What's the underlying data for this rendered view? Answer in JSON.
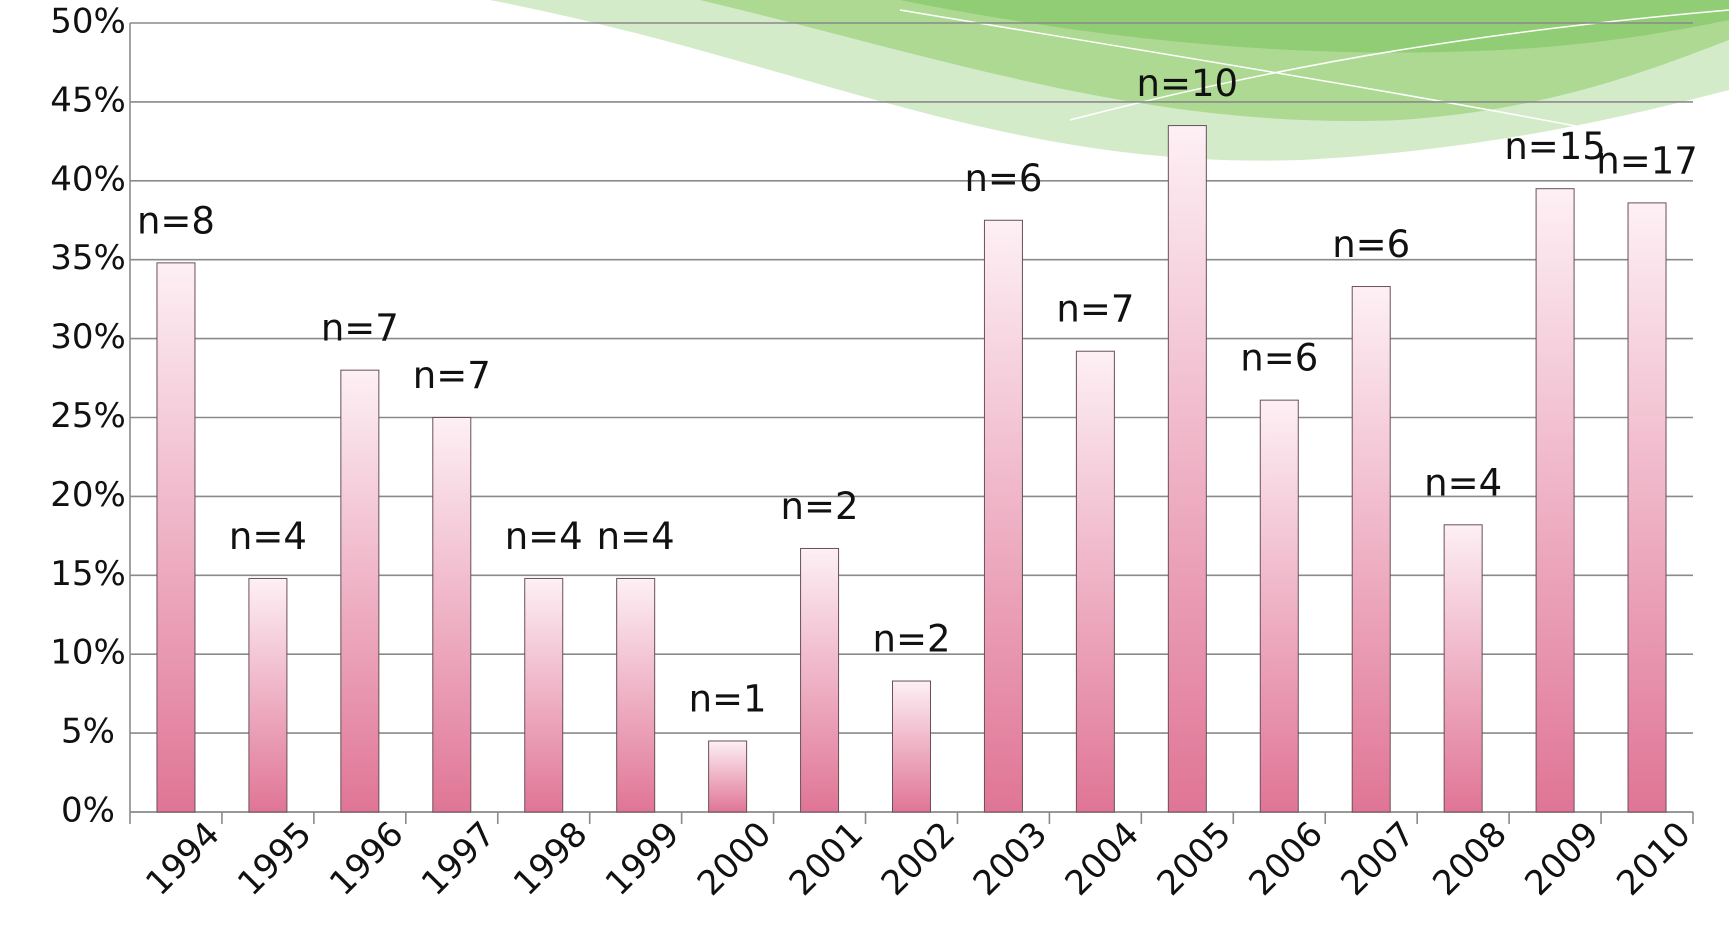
{
  "chart_data": {
    "type": "bar",
    "categories": [
      "1994",
      "1995",
      "1996",
      "1997",
      "1998",
      "1999",
      "2000",
      "2001",
      "2002",
      "2003",
      "2004",
      "2005",
      "2006",
      "2007",
      "2008",
      "2009",
      "2010"
    ],
    "values": [
      34.8,
      14.8,
      28,
      25,
      14.8,
      14.8,
      4.5,
      16.7,
      8.3,
      37.5,
      29.2,
      43.5,
      26.1,
      33.3,
      18.2,
      39.5,
      38.6
    ],
    "annotations": [
      "n=8",
      "n=4",
      "n=7",
      "n=7",
      "n=4",
      "n=4",
      "n=1",
      "n=2",
      "n=2",
      "n=6",
      "n=7",
      "n=10",
      "n=6",
      "n=6",
      "n=4",
      "n=15",
      "n=17"
    ],
    "color": "#e07596",
    "ylim": [
      0,
      50
    ],
    "yticks": [
      {
        "value": 0,
        "label": "0%"
      },
      {
        "value": 5,
        "label": "5%"
      },
      {
        "value": 10,
        "label": "10%"
      },
      {
        "value": 15,
        "label": "15%"
      },
      {
        "value": 20,
        "label": "20%"
      },
      {
        "value": 25,
        "label": "25%"
      },
      {
        "value": 30,
        "label": "30%"
      },
      {
        "value": 35,
        "label": "35%"
      },
      {
        "value": 40,
        "label": "40%"
      },
      {
        "value": 45,
        "label": "45%"
      },
      {
        "value": 50,
        "label": "50%"
      }
    ],
    "grid": true
  }
}
